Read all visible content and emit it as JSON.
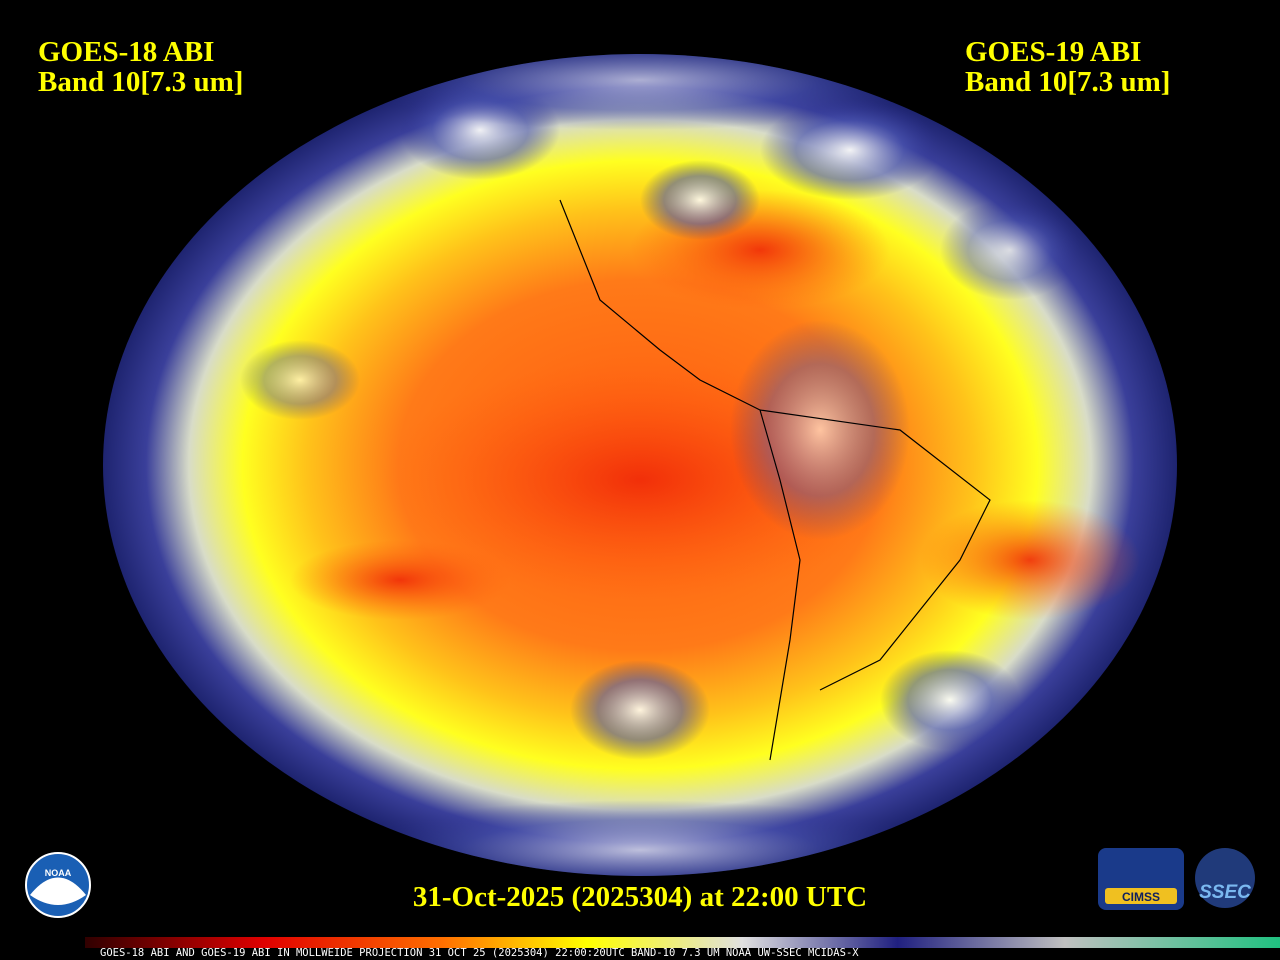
{
  "header": {
    "left": {
      "satellite": "GOES-18 ABI",
      "band": "Band 10[7.3 um]"
    },
    "right": {
      "satellite": "GOES-19 ABI",
      "band": "Band 10[7.3 um]"
    }
  },
  "timestamp": "31-Oct-2025 (2025304) at 22:00 UTC",
  "colorbar_caption": "GOES-18 ABI AND GOES-19 ABI IN MOLLWEIDE PROJECTION 31 OCT 25 (2025304) 22:00:20UTC BAND-10 7.3 UM NOAA UW-SSEC MCIDAS-X",
  "logos": {
    "noaa": "NOAA",
    "cimss": "CIMSS",
    "ssec": "SSEC"
  }
}
